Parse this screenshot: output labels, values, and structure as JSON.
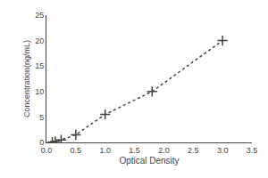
{
  "chart_data": {
    "type": "line",
    "x": [
      0.1,
      0.15,
      0.25,
      0.5,
      1.0,
      1.8,
      3.0
    ],
    "values": [
      0.05,
      0.2,
      0.5,
      1.5,
      5.5,
      10.0,
      20.0
    ],
    "xlabel": "Optical Density",
    "ylabel": "Concentration(ng/mL)",
    "xlim": [
      0,
      3.5
    ],
    "ylim": [
      0,
      25
    ],
    "xticks": [
      {
        "value": 0,
        "label": "0.0"
      },
      0.5,
      {
        "value": 1.0,
        "label": "1.0"
      },
      1.5,
      {
        "value": 2.0,
        "label": "2.0"
      },
      2.5,
      {
        "value": 3.0,
        "label": "3.0"
      },
      3.5
    ],
    "yticks": [
      0,
      5,
      10,
      15,
      20,
      25
    ],
    "color": "#444444",
    "marker": "plus",
    "line_style": "dotted",
    "grid": false
  }
}
